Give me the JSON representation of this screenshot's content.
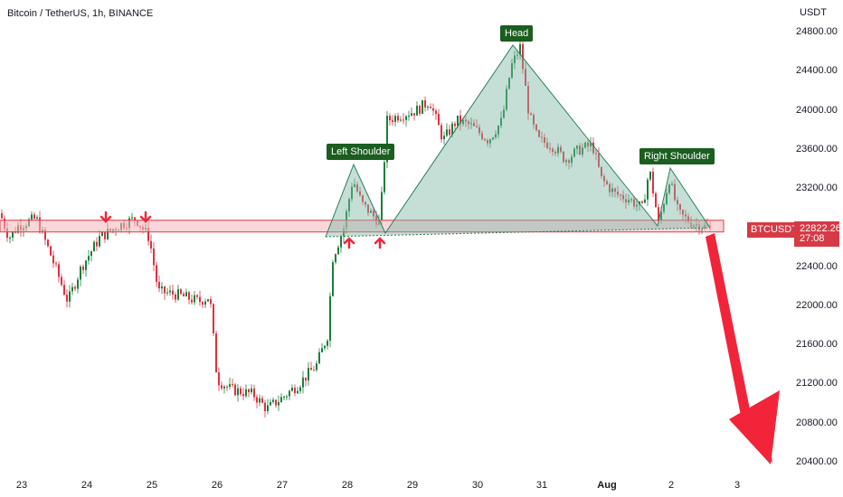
{
  "header": {
    "title": "Bitcoin / TetherUS, 1h, BINANCE"
  },
  "price_axis": {
    "currency": "USDT",
    "ticks": [
      "24800.00",
      "24400.00",
      "24000.00",
      "23600.00",
      "23200.00",
      "22400.00",
      "22000.00",
      "21600.00",
      "21200.00",
      "20800.00",
      "20400.00"
    ]
  },
  "price_tag": {
    "symbol": "BTCUSDT",
    "price": "22822.26",
    "countdown": "27:08"
  },
  "time_axis": {
    "ticks": [
      "23",
      "24",
      "25",
      "26",
      "27",
      "28",
      "29",
      "30",
      "31",
      "Aug",
      "2",
      "3"
    ]
  },
  "annotations": {
    "left_shoulder": "Left Shoulder",
    "head": "Head",
    "right_shoulder": "Right Shoulder"
  },
  "colors": {
    "up": "#26a69a",
    "down": "#ef5350",
    "up_candle": "#1b7f3b",
    "down_candle": "#e0313f",
    "zone": "#f5b5bb",
    "pattern_fill": "#7fb9a6",
    "arrow": "#f2243a"
  },
  "chart_data": {
    "type": "candlestick",
    "symbol": "BTCUSDT",
    "timeframe": "1h",
    "ylim": [
      20400,
      24900
    ],
    "current_price": 22822.26,
    "support_zone": [
      22760,
      22880
    ],
    "pattern": "head-and-shoulders",
    "points": {
      "left_shoulder": 23450,
      "head": 24680,
      "right_shoulder": 23430,
      "neckline": 22770
    },
    "projection_target": 20450
  }
}
